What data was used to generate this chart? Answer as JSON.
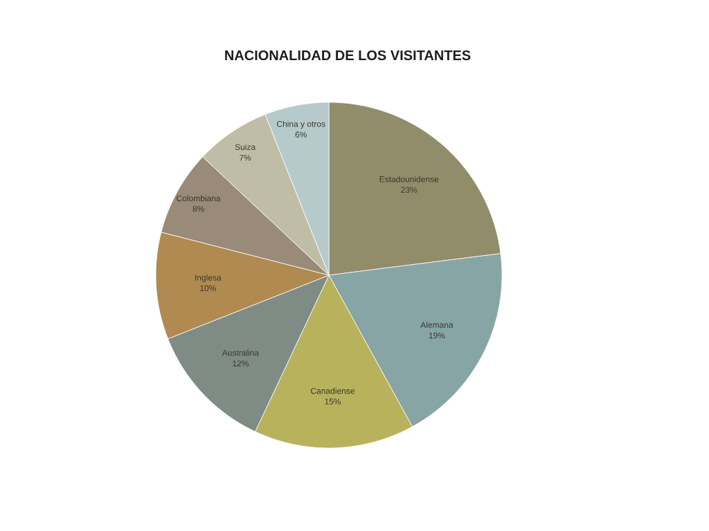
{
  "chart_data": {
    "type": "pie",
    "title": "NACIONALIDAD DE LOS VISITANTES",
    "categories": [
      "Estadounidense",
      "Alemana",
      "Canadiense",
      "Australina",
      "Inglesa",
      "Colombiana",
      "Suiza",
      "China y otros"
    ],
    "values": [
      23,
      19,
      15,
      12,
      10,
      8,
      7,
      6
    ],
    "value_labels": [
      "23%",
      "19%",
      "15%",
      "12%",
      "10%",
      "8%",
      "7%",
      "6%"
    ],
    "colors": [
      "#918c6a",
      "#87a5a5",
      "#b8b25c",
      "#7f8c86",
      "#b08a50",
      "#9a8a78",
      "#c0bda6",
      "#b6cacb"
    ]
  }
}
